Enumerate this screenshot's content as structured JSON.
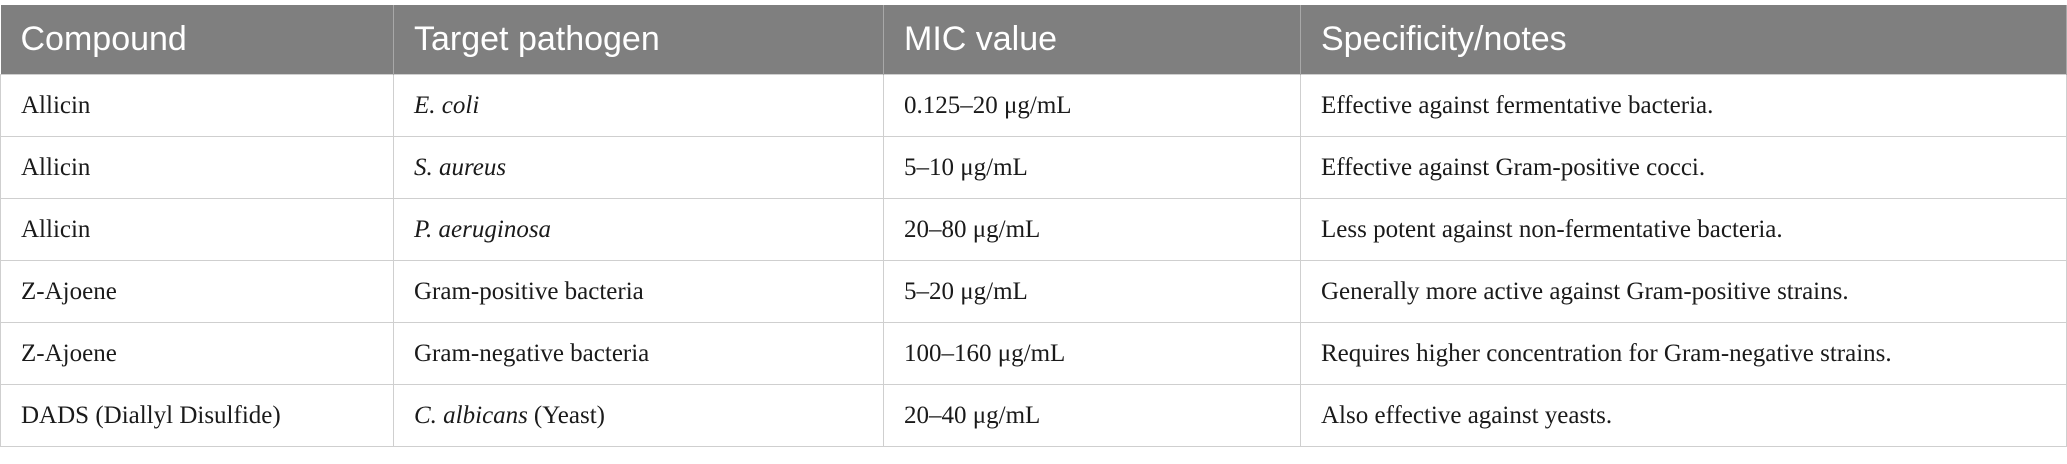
{
  "table": {
    "header": [
      "Compound",
      "Target pathogen",
      "MIC value",
      "Specificity/notes"
    ],
    "rows": [
      [
        "Allicin",
        {
          "italic": "E. coli"
        },
        "0.125–20 μg/mL",
        "Effective against fermentative bacteria."
      ],
      [
        "Allicin",
        {
          "italic": "S. aureus"
        },
        "5–10 μg/mL",
        "Effective against Gram-positive cocci."
      ],
      [
        "Allicin",
        {
          "italic": "P. aeruginosa"
        },
        "20–80 μg/mL",
        "Less potent against non-fermentative bacteria."
      ],
      [
        "Z-Ajoene",
        {
          "plain": "Gram-positive bacteria"
        },
        "5–20 μg/mL",
        "Generally more active against Gram-positive strains."
      ],
      [
        "Z-Ajoene",
        {
          "plain": "Gram-negative bacteria"
        },
        "100–160 μg/mL",
        "Requires higher concentration for Gram-negative strains."
      ],
      [
        "DADS (Diallyl Disulfide)",
        {
          "italic": "C. albicans",
          "plain": "(Yeast)"
        },
        "20–40 μg/mL",
        "Also effective against yeasts."
      ]
    ]
  }
}
